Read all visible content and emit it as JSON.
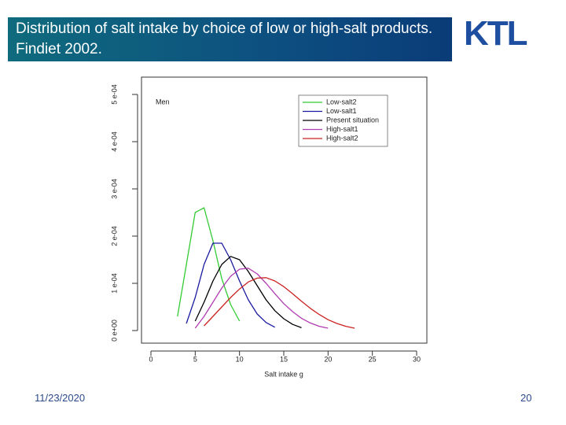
{
  "slide": {
    "title": "Distribution of salt intake by choice of low or high-salt products. Findiet 2002.",
    "logo": "KTL",
    "date": "11/23/2020",
    "page": "20"
  },
  "chart_data": {
    "type": "line",
    "annotation": "Men",
    "x_label": "Salt intake g",
    "x": [
      2,
      3,
      4,
      5,
      6,
      7,
      8,
      9,
      10,
      11,
      12,
      13,
      14,
      15,
      16,
      17,
      18,
      19,
      20,
      21,
      22,
      23
    ],
    "series": [
      {
        "name": "Low-salt2",
        "color": "#33cc33",
        "values": [
          null,
          3e-05,
          0.00014,
          0.00025,
          0.00026,
          0.00019,
          0.00011,
          5.5e-05,
          2e-05,
          null,
          null,
          null,
          null,
          null,
          null,
          null,
          null,
          null,
          null,
          null,
          null,
          null
        ]
      },
      {
        "name": "Low-salt1",
        "color": "#1a1aa0",
        "values": [
          null,
          null,
          1.5e-05,
          7e-05,
          0.00014,
          0.000185,
          0.000185,
          0.00015,
          0.000105,
          6.5e-05,
          3.5e-05,
          1.7e-05,
          7e-06,
          null,
          null,
          null,
          null,
          null,
          null,
          null,
          null,
          null
        ]
      },
      {
        "name": "Present situation",
        "color": "#000000",
        "values": [
          null,
          null,
          null,
          2e-05,
          6e-05,
          0.000105,
          0.00014,
          0.000157,
          0.00015,
          0.000125,
          9.5e-05,
          6.5e-05,
          4.2e-05,
          2.5e-05,
          1.3e-05,
          6e-06,
          null,
          null,
          null,
          null,
          null,
          null
        ]
      },
      {
        "name": "High-salt1",
        "color": "#b03cb0",
        "values": [
          null,
          null,
          null,
          5e-06,
          3e-05,
          6e-05,
          9e-05,
          0.000115,
          0.00013,
          0.000132,
          0.00012,
          0.0001,
          7.8e-05,
          5.7e-05,
          4e-05,
          2.6e-05,
          1.6e-05,
          9e-06,
          5e-06,
          null,
          null,
          null
        ]
      },
      {
        "name": "High-salt2",
        "color": "#cc2222",
        "values": [
          null,
          null,
          null,
          null,
          1e-05,
          3e-05,
          5e-05,
          7e-05,
          8.8e-05,
          0.000103,
          0.000111,
          0.000112,
          0.000105,
          9.3e-05,
          7.8e-05,
          6.2e-05,
          4.7e-05,
          3.4e-05,
          2.3e-05,
          1.5e-05,
          9e-06,
          5e-06
        ]
      }
    ],
    "xlim": [
      0,
      30
    ],
    "xticks": [
      0,
      5,
      10,
      15,
      20,
      25,
      30
    ],
    "ylim": [
      0,
      0.0005
    ],
    "yticks": [
      {
        "value": 0,
        "label": "0 e+00"
      },
      {
        "value": 0.0001,
        "label": "1 e-04"
      },
      {
        "value": 0.0002,
        "label": "2 e-04"
      },
      {
        "value": 0.0003,
        "label": "3 e-04"
      },
      {
        "value": 0.0004,
        "label": "4 e-04"
      },
      {
        "value": 0.0005,
        "label": "5 e-04"
      }
    ]
  }
}
